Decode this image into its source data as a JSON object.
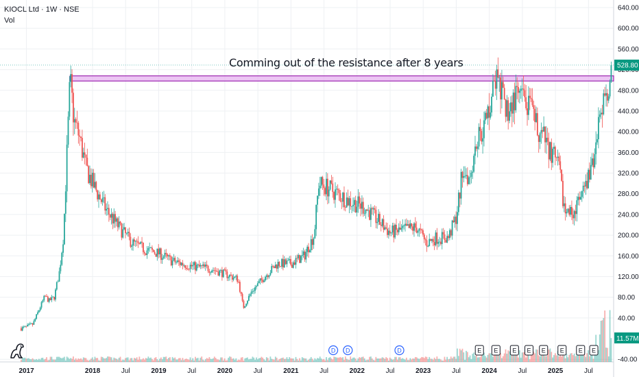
{
  "header": {
    "symbol": "KIOCL Ltd · 1W · NSE",
    "indicator": "Vol"
  },
  "annotation": {
    "text": "Comming out of the resistance after 8 years"
  },
  "colors": {
    "up": "#26a69a",
    "down": "#ef5350",
    "zone_fill": "#e6b3f0",
    "zone_border": "#9c27b0",
    "grid": "#eef0f3",
    "axis_text": "#131722",
    "last_price_bg": "#089981",
    "event_blue": "#2962ff"
  },
  "price_badge": "528.80",
  "volume_badge": "11.57M",
  "events": {
    "dividend_label": "D",
    "earnings_label": "E"
  },
  "icons": {
    "logo": "tradingview-dino-icon"
  },
  "chart_data": {
    "type": "candlestick",
    "title": "KIOCL Ltd · 1W · NSE",
    "y_ticks": [
      "640.00",
      "600.00",
      "560.00",
      "520.00",
      "480.00",
      "440.00",
      "400.00",
      "360.00",
      "320.00",
      "280.00",
      "240.00",
      "200.00",
      "160.00",
      "120.00",
      "80.00",
      "40.00",
      "-40.00"
    ],
    "y_tick_values": [
      640,
      600,
      560,
      520,
      480,
      440,
      400,
      360,
      320,
      280,
      240,
      200,
      160,
      120,
      80,
      40,
      -40
    ],
    "x_ticks": [
      {
        "label": "2017",
        "t": 2017.0
      },
      {
        "label": "2018",
        "t": 2018.0
      },
      {
        "label": "Jul",
        "t": 2018.5
      },
      {
        "label": "2019",
        "t": 2019.0
      },
      {
        "label": "Jul",
        "t": 2019.5
      },
      {
        "label": "2020",
        "t": 2020.0
      },
      {
        "label": "Jul",
        "t": 2020.5
      },
      {
        "label": "2021",
        "t": 2021.0
      },
      {
        "label": "Jul",
        "t": 2021.5
      },
      {
        "label": "2022",
        "t": 2022.0
      },
      {
        "label": "Jul",
        "t": 2022.5
      },
      {
        "label": "2023",
        "t": 2023.0
      },
      {
        "label": "Jul",
        "t": 2023.5
      },
      {
        "label": "2024",
        "t": 2024.0
      },
      {
        "label": "Jul",
        "t": 2024.5
      },
      {
        "label": "2025",
        "t": 2025.0
      },
      {
        "label": "Jul",
        "t": 2025.5
      }
    ],
    "ylim": [
      -45,
      648
    ],
    "xlim": [
      2016.6,
      2025.88
    ],
    "last_price": 528.8,
    "resistance_zone": {
      "from": 2017.66,
      "to": 2025.88,
      "low": 498,
      "high": 508
    },
    "dividends": [
      2021.64,
      2021.86,
      2022.64
    ],
    "earnings": [
      2023.85,
      2024.1,
      2024.38,
      2024.6,
      2024.82,
      2025.1,
      2025.38,
      2025.58
    ],
    "price_path": [
      [
        2016.92,
        20
      ],
      [
        2017.0,
        22
      ],
      [
        2017.1,
        28
      ],
      [
        2017.22,
        65
      ],
      [
        2017.28,
        82
      ],
      [
        2017.34,
        73
      ],
      [
        2017.42,
        80
      ],
      [
        2017.5,
        130
      ],
      [
        2017.56,
        200
      ],
      [
        2017.62,
        380
      ],
      [
        2017.66,
        500
      ],
      [
        2017.72,
        420
      ],
      [
        2017.8,
        390
      ],
      [
        2017.9,
        330
      ],
      [
        2018.0,
        300
      ],
      [
        2018.2,
        250
      ],
      [
        2018.4,
        215
      ],
      [
        2018.6,
        185
      ],
      [
        2018.8,
        172
      ],
      [
        2019.0,
        165
      ],
      [
        2019.2,
        150
      ],
      [
        2019.5,
        140
      ],
      [
        2019.8,
        135
      ],
      [
        2020.0,
        125
      ],
      [
        2020.2,
        115
      ],
      [
        2020.28,
        60
      ],
      [
        2020.4,
        90
      ],
      [
        2020.6,
        120
      ],
      [
        2020.8,
        145
      ],
      [
        2021.0,
        145
      ],
      [
        2021.2,
        160
      ],
      [
        2021.35,
        200
      ],
      [
        2021.42,
        300
      ],
      [
        2021.55,
        292
      ],
      [
        2021.7,
        280
      ],
      [
        2021.9,
        265
      ],
      [
        2022.1,
        255
      ],
      [
        2022.3,
        230
      ],
      [
        2022.5,
        205
      ],
      [
        2022.7,
        210
      ],
      [
        2022.9,
        215
      ],
      [
        2023.05,
        185
      ],
      [
        2023.2,
        195
      ],
      [
        2023.38,
        195
      ],
      [
        2023.5,
        235
      ],
      [
        2023.6,
        330
      ],
      [
        2023.7,
        312
      ],
      [
        2023.8,
        380
      ],
      [
        2023.95,
        420
      ],
      [
        2024.1,
        505
      ],
      [
        2024.25,
        440
      ],
      [
        2024.45,
        470
      ],
      [
        2024.6,
        445
      ],
      [
        2024.75,
        400
      ],
      [
        2024.9,
        370
      ],
      [
        2025.05,
        330
      ],
      [
        2025.15,
        240
      ],
      [
        2025.3,
        250
      ],
      [
        2025.42,
        280
      ],
      [
        2025.55,
        330
      ],
      [
        2025.68,
        430
      ],
      [
        2025.78,
        470
      ],
      [
        2025.85,
        528.8
      ]
    ]
  }
}
